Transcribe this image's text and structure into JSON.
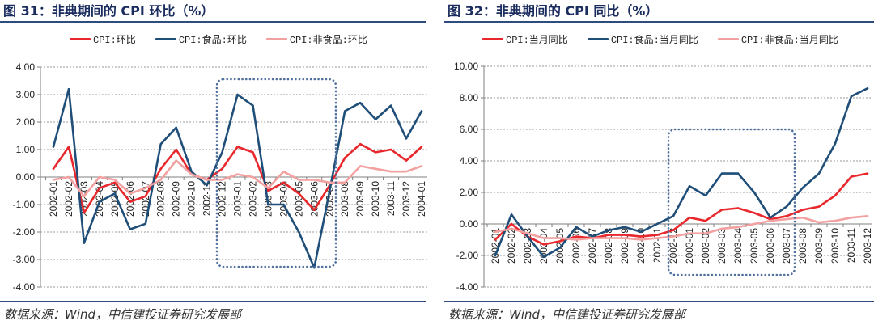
{
  "colors": {
    "title": "#1b2d5e",
    "rule": "#2e4d7d",
    "grid": "#9a9a9a",
    "axis": "#7f7f7f",
    "highlight": "#4f6f9f",
    "source": "#333333"
  },
  "figures": [
    {
      "source": "数据来源：Wind，中信建投证券研究发展部"
    },
    {
      "source": "数据来源：Wind，中信建投证券研究发展部"
    }
  ],
  "chart_data": [
    {
      "type": "line",
      "title": "图 31：非典期间的 CPI 环比（%）",
      "ylim": [
        -4,
        4
      ],
      "ytick_labels": [
        "4.00",
        "3.00",
        "2.00",
        "1.00",
        "0.00",
        "-1.00",
        "-2.00",
        "-3.00",
        "-4.00"
      ],
      "grid": true,
      "legend": "top-center",
      "categories": [
        "2002-01",
        "2002-02",
        "2002-03",
        "2002-04",
        "2002-05",
        "2002-06",
        "2002-07",
        "2002-08",
        "2002-09",
        "2002-10",
        "2002-11",
        "2002-12",
        "2003-01",
        "2003-02",
        "2003-03",
        "2003-04",
        "2003-05",
        "2003-06",
        "2003-07",
        "2003-08",
        "2003-09",
        "2003-10",
        "2003-11",
        "2003-12",
        "2004-01"
      ],
      "series": [
        {
          "name": "CPI:环比",
          "color": "#e8282c",
          "values": [
            0.3,
            1.1,
            -1.3,
            -0.4,
            -0.2,
            -0.9,
            -0.7,
            0.3,
            1.0,
            0.1,
            -0.1,
            0.3,
            1.1,
            0.9,
            -0.5,
            -0.2,
            -0.6,
            -1.2,
            -0.3,
            0.7,
            1.2,
            0.9,
            1.0,
            0.6,
            1.1
          ]
        },
        {
          "name": "CPI:食品:环比",
          "color": "#1f4e79",
          "values": [
            1.1,
            3.2,
            -2.4,
            -0.9,
            -0.6,
            -1.9,
            -1.7,
            1.2,
            1.8,
            0.2,
            -0.3,
            0.9,
            3.0,
            2.6,
            -1.0,
            -1.0,
            -2.0,
            -3.3,
            -0.5,
            2.4,
            2.7,
            2.1,
            2.6,
            1.4,
            2.4
          ]
        },
        {
          "name": "CPI:非食品:环比",
          "color": "#f3a0a0",
          "values": [
            -0.1,
            0.0,
            -0.7,
            0.0,
            -0.1,
            -0.6,
            -0.4,
            -0.1,
            0.6,
            0.1,
            -0.1,
            -0.1,
            0.1,
            0.0,
            -0.4,
            0.2,
            -0.1,
            -0.1,
            -0.2,
            -0.2,
            0.4,
            0.3,
            0.2,
            0.2,
            0.4
          ]
        }
      ]
    },
    {
      "type": "line",
      "title": "图 32：非典期间的 CPI 同比（%）",
      "ylim": [
        -4,
        10
      ],
      "ytick_labels": [
        "10.00",
        "8.00",
        "6.00",
        "4.00",
        "2.00",
        "0.00",
        "-2.00",
        "-4.00"
      ],
      "grid": true,
      "legend": "top-center",
      "categories": [
        "2002-01",
        "2002-02",
        "2002-03",
        "2002-04",
        "2002-05",
        "2002-06",
        "2002-07",
        "2002-08",
        "2002-09",
        "2002-10",
        "2002-11",
        "2002-12",
        "2003-01",
        "2003-02",
        "2003-03",
        "2003-04",
        "2003-05",
        "2003-06",
        "2003-07",
        "2003-08",
        "2003-09",
        "2003-10",
        "2003-11",
        "2003-12"
      ],
      "series": [
        {
          "name": "CPI:当月同比",
          "color": "#e8282c",
          "values": [
            -1.0,
            0.0,
            -0.8,
            -1.3,
            -1.1,
            -0.8,
            -0.9,
            -0.7,
            -0.7,
            -0.8,
            -0.7,
            -0.4,
            0.4,
            0.2,
            0.9,
            1.0,
            0.7,
            0.3,
            0.5,
            0.9,
            1.1,
            1.8,
            3.0,
            3.2
          ]
        },
        {
          "name": "CPI:食品:当月同比",
          "color": "#1f4e79",
          "values": [
            -2.0,
            0.6,
            -0.8,
            -2.1,
            -1.5,
            -0.2,
            -0.8,
            -0.4,
            -0.2,
            -0.5,
            0.0,
            0.5,
            2.4,
            1.8,
            3.2,
            3.2,
            2.0,
            0.4,
            1.1,
            2.3,
            3.2,
            5.1,
            8.1,
            8.6
          ]
        },
        {
          "name": "CPI:非食品:当月同比",
          "color": "#f3a0a0",
          "values": [
            -0.5,
            -0.3,
            -0.6,
            -0.9,
            -0.9,
            -1.0,
            -0.9,
            -0.9,
            -0.9,
            -1.0,
            -0.9,
            -0.8,
            -0.6,
            -0.6,
            -0.3,
            -0.2,
            0.0,
            0.2,
            0.3,
            0.4,
            0.1,
            0.2,
            0.4,
            0.5
          ]
        }
      ]
    }
  ]
}
